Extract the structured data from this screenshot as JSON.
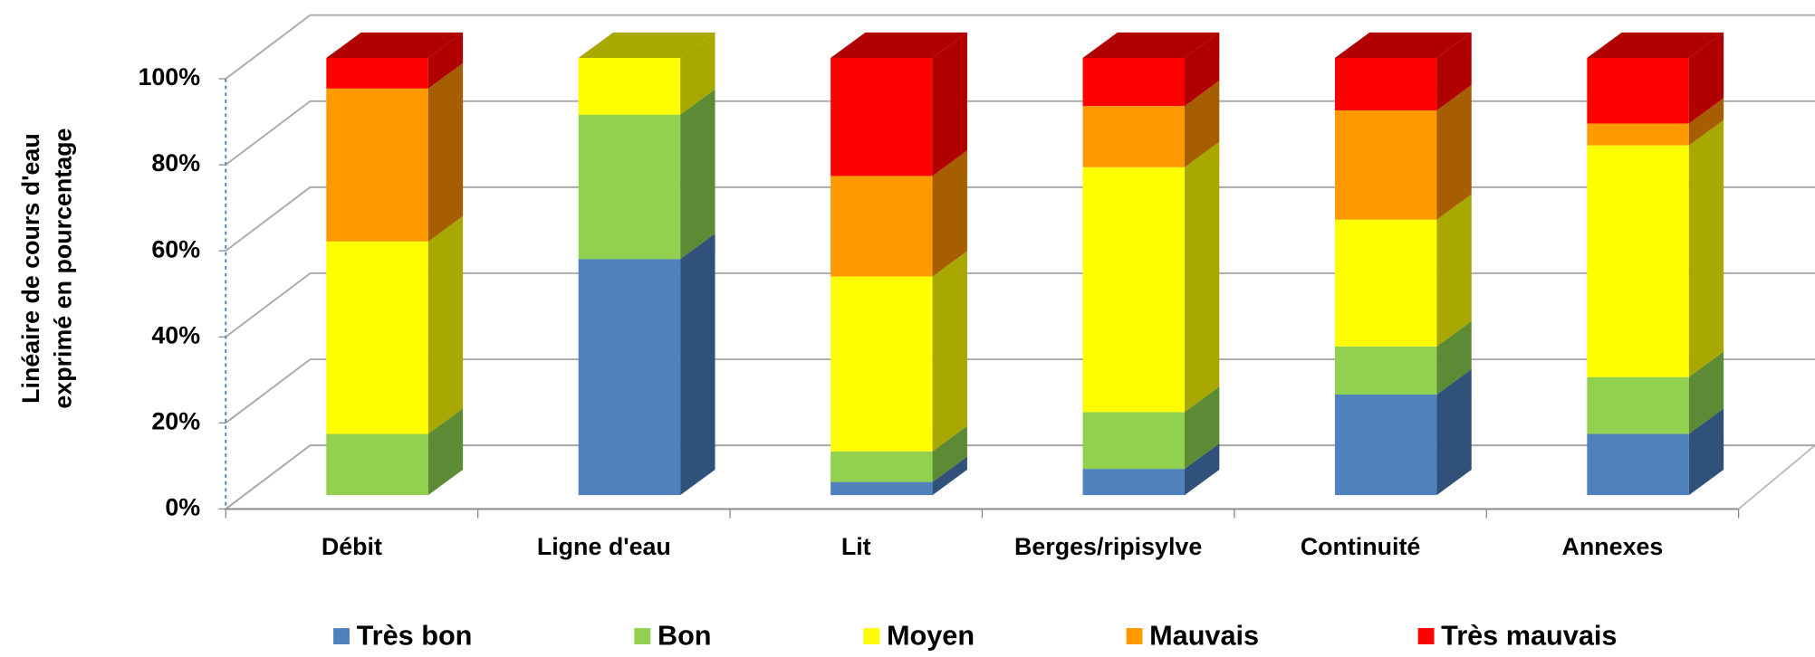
{
  "chart_data": {
    "type": "stacked_bar_3d",
    "y_label": [
      "Linéaire de cours d'eau",
      "exprimé en pourcentage"
    ],
    "categories": [
      "Débit",
      "Ligne d'eau",
      "Lit",
      "Berges/ripisylve",
      "Continuité",
      "Annexes"
    ],
    "series": [
      {
        "name": "Très bon",
        "color": "#4f81bd",
        "side_color": "#30517a",
        "values": [
          0,
          54,
          3,
          6,
          23,
          14
        ]
      },
      {
        "name": "Bon",
        "color": "#92d050",
        "side_color": "#5d8a35",
        "values": [
          14,
          33,
          7,
          13,
          11,
          13
        ]
      },
      {
        "name": "Moyen",
        "color": "#ffff00",
        "side_color": "#a8a800",
        "values": [
          44,
          13,
          40,
          56,
          29,
          53
        ]
      },
      {
        "name": "Mauvais",
        "color": "#ff9900",
        "side_color": "#a65e00",
        "values": [
          35,
          0,
          23,
          14,
          25,
          5
        ]
      },
      {
        "name": "Très mauvais",
        "color": "#ff0000",
        "side_color": "#b00000",
        "values": [
          7,
          0,
          27,
          11,
          12,
          15
        ]
      }
    ],
    "ylim": [
      0,
      100
    ],
    "yticks": [
      {
        "value": 0,
        "label": "0%"
      },
      {
        "value": 20,
        "label": "20%"
      },
      {
        "value": 40,
        "label": "40%"
      },
      {
        "value": 60,
        "label": "60%"
      },
      {
        "value": 80,
        "label": "80%"
      },
      {
        "value": 100,
        "label": "100%"
      }
    ],
    "grid": true,
    "legend": "bottom"
  }
}
